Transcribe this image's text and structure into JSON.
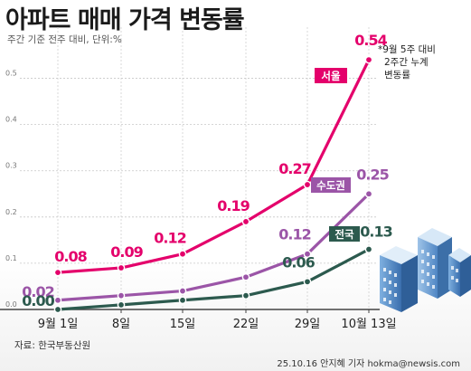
{
  "title": "아파트 매매 가격 변동률",
  "subtitle": "주간 기준 전주 대비, 단위:%",
  "note": [
    "*9월 5주 대비",
    "2주간 누계",
    "변동률"
  ],
  "source": "자료: 한국부동산원",
  "credit": "25.10.16 안지혜 기자 hokma@newsis.com",
  "chart_data": {
    "type": "line",
    "categories": [
      "9월 1일",
      "8일",
      "15일",
      "22일",
      "29일",
      "10월 13일"
    ],
    "ylim": [
      0,
      0.55
    ],
    "yticks": [
      "0.0",
      "0.1",
      "0.2",
      "0.3",
      "0.4",
      "0.5"
    ],
    "grid": true,
    "series": [
      {
        "name": "서울",
        "color": "#e4006b",
        "values": [
          0.08,
          0.09,
          0.12,
          0.19,
          0.27,
          0.54
        ],
        "labels": [
          "0.08",
          "0.09",
          "0.12",
          "0.19",
          "0.27",
          "0.54"
        ]
      },
      {
        "name": "수도권",
        "color": "#9b55a7",
        "values": [
          0.02,
          0.03,
          0.04,
          0.07,
          0.12,
          0.25
        ],
        "labels": [
          "0.02",
          "",
          "",
          "",
          "0.12",
          "0.25"
        ]
      },
      {
        "name": "전국",
        "color": "#2c5a4e",
        "values": [
          0.0,
          0.01,
          0.02,
          0.03,
          0.06,
          0.13
        ],
        "labels": [
          "0.00",
          "",
          "",
          "",
          "0.06",
          "0.13"
        ]
      }
    ]
  }
}
